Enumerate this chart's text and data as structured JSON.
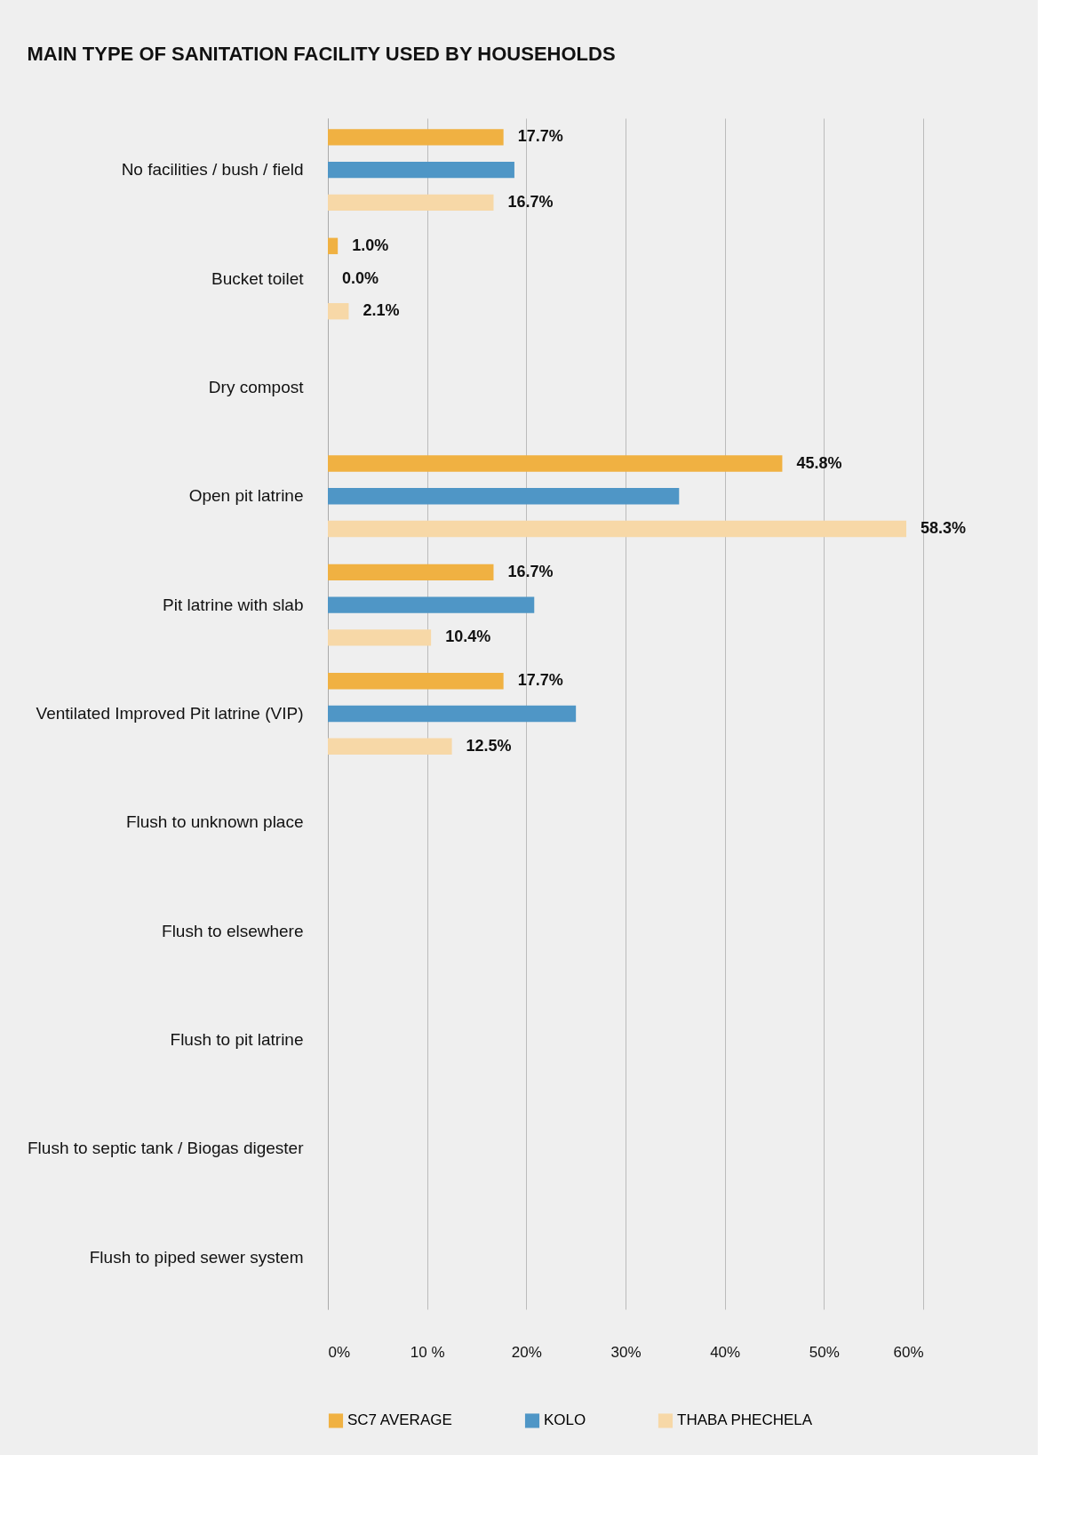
{
  "chart_data": {
    "type": "bar",
    "orientation": "horizontal",
    "title": "MAIN TYPE OF SANITATION FACILITY USED BY HOUSEHOLDS",
    "categories": [
      "No facilities / bush / field",
      "Bucket toilet",
      "Dry compost",
      "Open pit latrine",
      "Pit latrine with slab",
      "Ventilated Improved Pit latrine (VIP)",
      "Flush to unknown place",
      "Flush to elsewhere",
      "Flush to pit latrine",
      "Flush to septic tank / Biogas digester",
      "Flush to piped sewer system"
    ],
    "series": [
      {
        "name": "SC7 AVERAGE",
        "color": "#f0b142",
        "values": [
          17.7,
          1.0,
          null,
          45.8,
          16.7,
          17.7,
          null,
          null,
          null,
          null,
          null
        ],
        "value_labels": [
          "17.7%",
          "1.0%",
          null,
          "45.8%",
          "16.7%",
          "17.7%",
          null,
          null,
          null,
          null,
          null
        ]
      },
      {
        "name": "KOLO",
        "color": "#4f96c6",
        "values": [
          18.8,
          0.0,
          null,
          35.4,
          20.8,
          25.0,
          null,
          null,
          null,
          null,
          null
        ],
        "value_labels": [
          null,
          "0.0%",
          null,
          null,
          null,
          null,
          null,
          null,
          null,
          null,
          null
        ]
      },
      {
        "name": "THABA PHECHELA",
        "color": "#f7d8a7",
        "values": [
          16.7,
          2.1,
          null,
          58.3,
          10.4,
          12.5,
          null,
          null,
          null,
          null,
          null
        ],
        "value_labels": [
          "16.7%",
          "2.1%",
          null,
          "58.3%",
          "10.4%",
          "12.5%",
          null,
          null,
          null,
          null,
          null
        ]
      }
    ],
    "xlim": [
      0,
      60
    ],
    "xticks": [
      {
        "value": 0,
        "label": "0%"
      },
      {
        "value": 10,
        "label": "10 %"
      },
      {
        "value": 20,
        "label": "20%"
      },
      {
        "value": 30,
        "label": "30%"
      },
      {
        "value": 40,
        "label": "40%"
      },
      {
        "value": 50,
        "label": "50%"
      },
      {
        "value": 60,
        "label": "60%"
      }
    ],
    "grid": "x",
    "legend": "bottom"
  }
}
